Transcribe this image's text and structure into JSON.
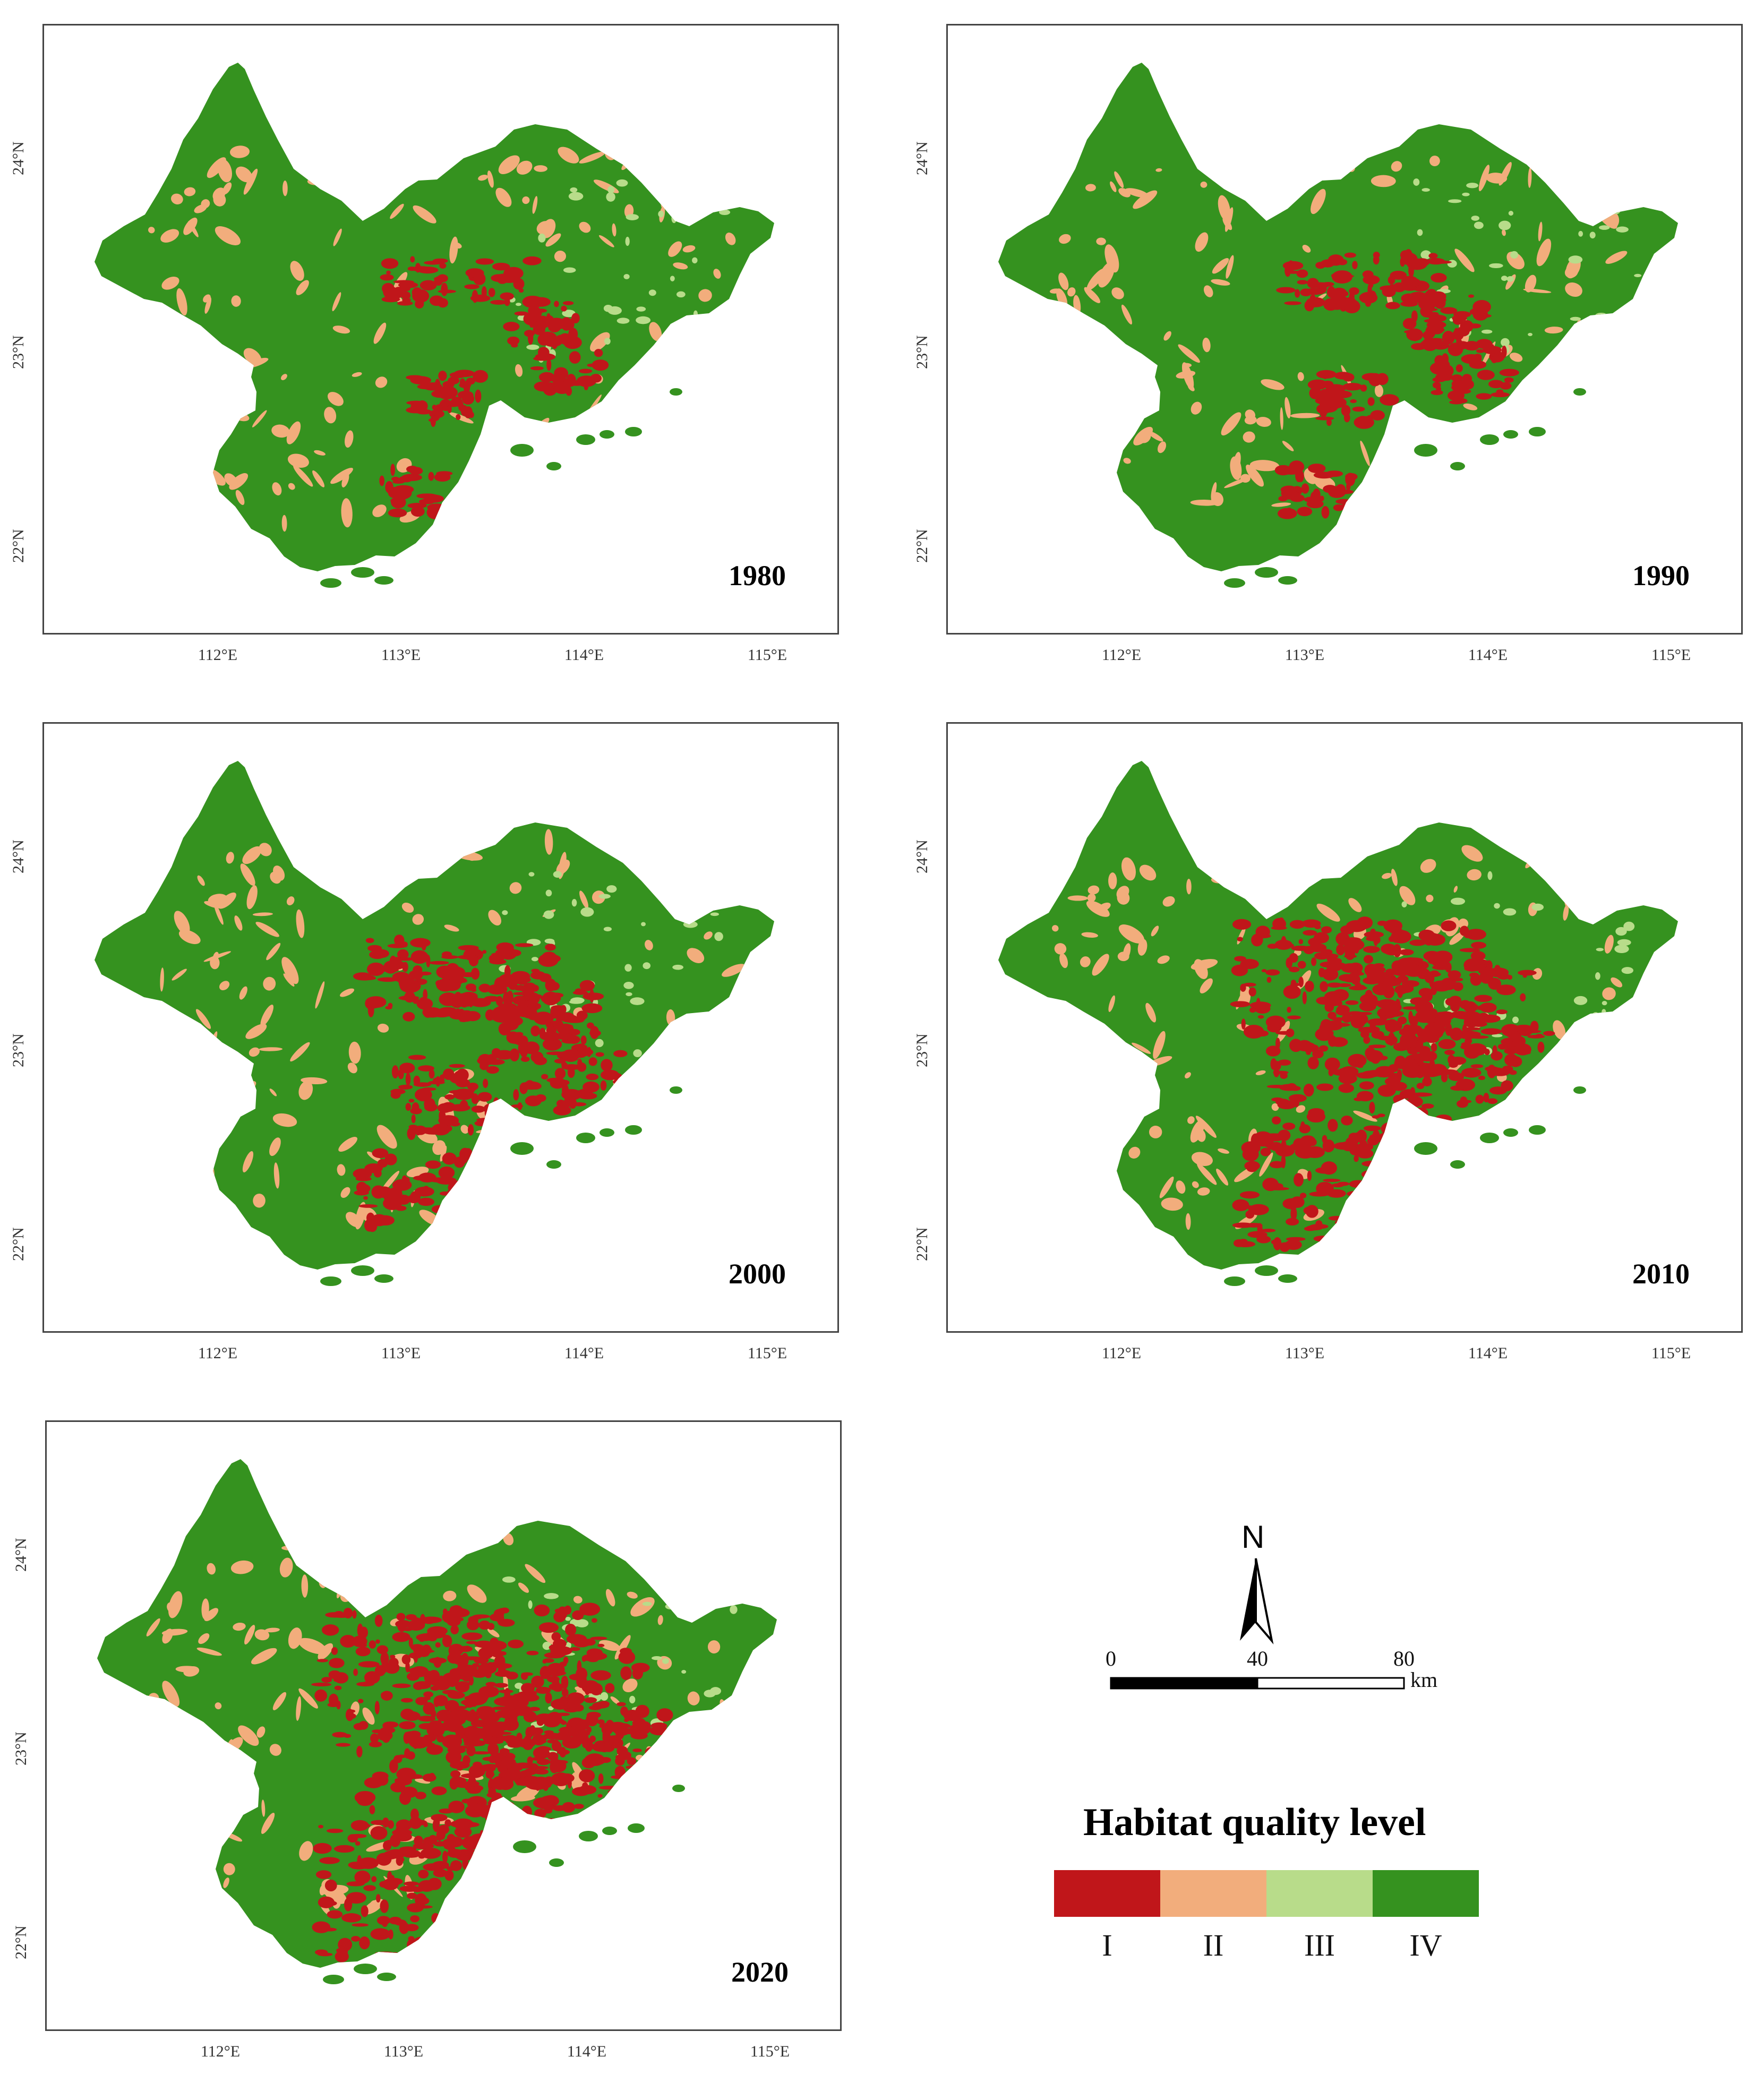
{
  "panels": [
    {
      "year": "1980"
    },
    {
      "year": "1990"
    },
    {
      "year": "2000"
    },
    {
      "year": "2010"
    },
    {
      "year": "2020"
    }
  ],
  "axes": {
    "x_ticks": [
      "112°E",
      "113°E",
      "114°E",
      "115°E"
    ],
    "y_ticks": [
      "24°N",
      "23°N",
      "22°N"
    ]
  },
  "north_arrow": {
    "label": "N"
  },
  "scale_bar": {
    "ticks": [
      "0",
      "40",
      "80"
    ],
    "unit": "km"
  },
  "legend": {
    "title": "Habitat quality level",
    "classes": [
      {
        "label": "I",
        "color": "#c0161a"
      },
      {
        "label": "II",
        "color": "#f2ad7c"
      },
      {
        "label": "III",
        "color": "#b8dc8a"
      },
      {
        "label": "IV",
        "color": "#35921f"
      }
    ]
  },
  "colors": {
    "frame": "#444444",
    "background": "#ffffff"
  }
}
